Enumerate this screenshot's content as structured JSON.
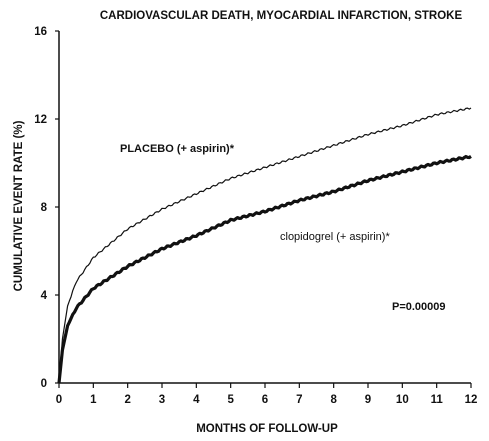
{
  "chart_data": {
    "type": "line",
    "title": "CARDIOVASCULAR DEATH, MYOCARDIAL INFARCTION, STROKE",
    "xlabel": "MONTHS OF FOLLOW-UP",
    "ylabel": "CUMULATIVE EVENT RATE (%)",
    "xlim": [
      0,
      12
    ],
    "ylim": [
      0,
      16
    ],
    "x_ticks": [
      "0",
      "1",
      "2",
      "3",
      "4",
      "5",
      "6",
      "7",
      "8",
      "9",
      "10",
      "11",
      "12"
    ],
    "y_ticks": [
      "0",
      "4",
      "8",
      "12",
      "16"
    ],
    "grid": false,
    "x": [
      0,
      0.1,
      0.25,
      0.5,
      1,
      2,
      3,
      4,
      5,
      6,
      7,
      8,
      9,
      10,
      11,
      12
    ],
    "series": [
      {
        "name": "PLACEBO (+ aspirin)*",
        "color": "#111111",
        "style": "thin",
        "values": [
          0,
          2.0,
          3.5,
          4.6,
          5.7,
          7.0,
          7.9,
          8.6,
          9.3,
          9.8,
          10.3,
          10.8,
          11.3,
          11.7,
          12.2,
          12.5
        ]
      },
      {
        "name": "clopidogrel (+ aspirin)*",
        "color": "#111111",
        "style": "thick",
        "values": [
          0,
          1.5,
          2.6,
          3.4,
          4.3,
          5.3,
          6.1,
          6.7,
          7.4,
          7.8,
          8.3,
          8.7,
          9.2,
          9.6,
          10.0,
          10.3
        ]
      }
    ],
    "annotations": {
      "p_value": "P=0.00009"
    }
  }
}
